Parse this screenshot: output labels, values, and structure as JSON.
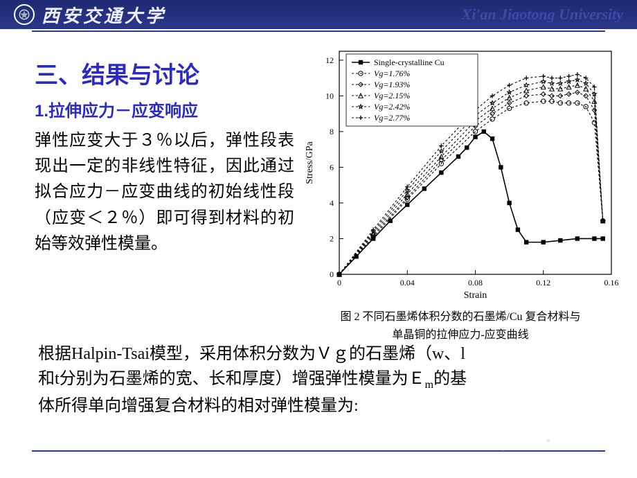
{
  "header": {
    "uni_cn": "西安交通大学",
    "uni_en": "Xi'an Jiaotong University"
  },
  "section": {
    "title": "三、结果与讨论",
    "subtitle": "1.拉伸应力－应变响应",
    "paragraph": "弹性应变大于３％以后，弹性段表现出一定的非线性特征，因此通过拟合应力－应变曲线的初始线性段（应变＜２％）即可得到材料的初始等效弹性模量。"
  },
  "bottom": {
    "line1_a": "根据Halpin-Tsai模型，采用体积分数为Ｖｇ的石墨烯（w、l",
    "line2_a": "和t分别为石墨烯的宽、长和厚度）增强弹性模量为Ｅ",
    "line2_sub": "m",
    "line2_b": "的基",
    "line3": "体所得单向增强复合材料的相对弹性模量为:"
  },
  "chart": {
    "type": "line",
    "xlabel": "Strain",
    "ylabel": "Stress/GPa",
    "xlim": [
      0,
      0.16
    ],
    "ylim": [
      0,
      12.5
    ],
    "xticks": [
      0,
      0.04,
      0.08,
      0.12,
      0.16
    ],
    "yticks": [
      0,
      2,
      4,
      6,
      8,
      10,
      12
    ],
    "title_fontsize": 16,
    "label_fontsize": 14,
    "tick_fontsize": 12,
    "legend_fontsize": 12,
    "background_color": "#ffffff",
    "axis_color": "#000000",
    "line_color": "#000000",
    "caption_line1": "图 2  不同石墨烯体积分数的石墨烯/Cu 复合材料与",
    "caption_line2": "单晶铜的拉伸应力-应变曲线",
    "legend": [
      {
        "label": "Single-crystalline Cu",
        "marker": "square-filled"
      },
      {
        "label": "Vg=1.76%",
        "marker": "circle-open"
      },
      {
        "label": "Vg=1.93%",
        "marker": "diamond-open"
      },
      {
        "label": "Vg=2.15%",
        "marker": "triangle-open"
      },
      {
        "label": "Vg=2.42%",
        "marker": "star-open"
      },
      {
        "label": "Vg=2.77%",
        "marker": "plus"
      }
    ],
    "series": [
      {
        "name": "cu",
        "marker": "square-filled",
        "solid": true,
        "x": [
          0,
          0.01,
          0.02,
          0.03,
          0.04,
          0.05,
          0.06,
          0.07,
          0.075,
          0.08,
          0.085,
          0.09,
          0.095,
          0.1,
          0.105,
          0.11,
          0.12,
          0.13,
          0.14,
          0.15,
          0.155
        ],
        "y": [
          0,
          1.0,
          2.0,
          3.0,
          3.9,
          4.8,
          5.7,
          6.6,
          7.1,
          7.7,
          8.0,
          7.6,
          6.0,
          4.0,
          2.5,
          1.8,
          1.8,
          1.9,
          2.0,
          2.0,
          2.0
        ]
      },
      {
        "name": "v1",
        "marker": "circle-open",
        "solid": false,
        "x": [
          0,
          0.02,
          0.04,
          0.06,
          0.08,
          0.09,
          0.1,
          0.11,
          0.12,
          0.125,
          0.13,
          0.135,
          0.14,
          0.145,
          0.15,
          0.155
        ],
        "y": [
          0,
          2.1,
          4.2,
          6.2,
          8.0,
          8.7,
          9.3,
          9.6,
          9.7,
          9.7,
          9.6,
          9.6,
          9.6,
          9.4,
          8.5,
          3.0
        ]
      },
      {
        "name": "v2",
        "marker": "diamond-open",
        "solid": false,
        "x": [
          0,
          0.02,
          0.04,
          0.06,
          0.08,
          0.09,
          0.1,
          0.11,
          0.12,
          0.125,
          0.13,
          0.135,
          0.14,
          0.145,
          0.15,
          0.155
        ],
        "y": [
          0,
          2.2,
          4.3,
          6.4,
          8.3,
          9.0,
          9.6,
          10.0,
          10.1,
          10.0,
          10.0,
          10.1,
          10.2,
          10.0,
          9.2,
          3.0
        ]
      },
      {
        "name": "v3",
        "marker": "triangle-open",
        "solid": false,
        "x": [
          0,
          0.02,
          0.04,
          0.06,
          0.08,
          0.09,
          0.1,
          0.11,
          0.12,
          0.125,
          0.13,
          0.135,
          0.14,
          0.145,
          0.15,
          0.155
        ],
        "y": [
          0,
          2.3,
          4.5,
          6.6,
          8.6,
          9.3,
          9.9,
          10.3,
          10.5,
          10.4,
          10.4,
          10.5,
          10.6,
          10.4,
          9.7,
          3.0
        ]
      },
      {
        "name": "v4",
        "marker": "star-open",
        "solid": false,
        "x": [
          0,
          0.02,
          0.04,
          0.06,
          0.08,
          0.09,
          0.1,
          0.11,
          0.12,
          0.125,
          0.13,
          0.135,
          0.14,
          0.145,
          0.15,
          0.155
        ],
        "y": [
          0,
          2.4,
          4.7,
          6.9,
          8.9,
          9.6,
          10.2,
          10.6,
          10.8,
          10.7,
          10.7,
          10.8,
          10.9,
          10.7,
          10.1,
          3.0
        ]
      },
      {
        "name": "v5",
        "marker": "plus",
        "solid": false,
        "x": [
          0,
          0.02,
          0.04,
          0.06,
          0.08,
          0.09,
          0.1,
          0.11,
          0.12,
          0.125,
          0.13,
          0.135,
          0.14,
          0.145,
          0.15,
          0.155
        ],
        "y": [
          0,
          2.5,
          4.9,
          7.2,
          9.2,
          10.0,
          10.6,
          11.0,
          11.1,
          11.0,
          11.0,
          11.1,
          11.2,
          11.0,
          10.5,
          3.0
        ]
      }
    ]
  }
}
